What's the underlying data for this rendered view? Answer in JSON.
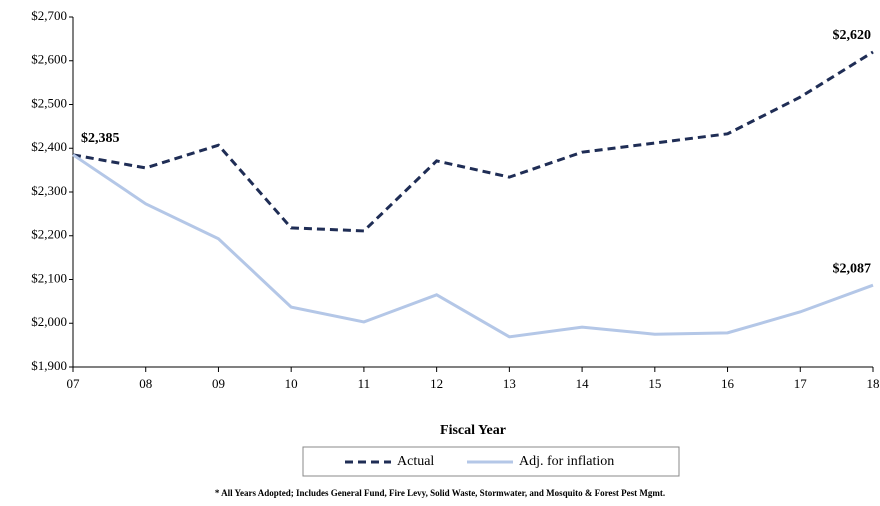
{
  "chart_data": {
    "type": "line",
    "x_label": "Fiscal Year",
    "footnote": "* All Years Adopted; Includes General Fund, Fire Levy, Solid Waste, Stormwater, and Mosquito & Forest Pest Mgmt.",
    "categories": [
      "07",
      "08",
      "09",
      "10",
      "11",
      "12",
      "13",
      "14",
      "15",
      "16",
      "17",
      "18"
    ],
    "series": [
      {
        "name": "Actual",
        "color": "#1f2d55",
        "dash": true,
        "values": [
          2385,
          2355,
          2407,
          2218,
          2211,
          2371,
          2334,
          2391,
          2412,
          2433,
          2517,
          2620
        ],
        "value_labels": [
          "$2,385",
          null,
          null,
          null,
          null,
          null,
          null,
          null,
          null,
          null,
          null,
          "$2,620"
        ]
      },
      {
        "name": "Adj. for inflation",
        "color": "#b4c7e7",
        "dash": false,
        "values": [
          2385,
          2273,
          2193,
          2037,
          2003,
          2065,
          1969,
          1991,
          1975,
          1978,
          2026,
          2087
        ],
        "value_labels": [
          null,
          null,
          null,
          null,
          null,
          null,
          null,
          null,
          null,
          null,
          null,
          "$2,087"
        ]
      }
    ],
    "ylim": [
      1900,
      2700
    ],
    "yticks": [
      {
        "value": 1900,
        "label": "$1,900"
      },
      {
        "value": 2000,
        "label": "$2,000"
      },
      {
        "value": 2100,
        "label": "$2,100"
      },
      {
        "value": 2200,
        "label": "$2,200"
      },
      {
        "value": 2300,
        "label": "$2,300"
      },
      {
        "value": 2400,
        "label": "$2,400"
      },
      {
        "value": 2500,
        "label": "$2,500"
      },
      {
        "value": 2600,
        "label": "$2,600"
      },
      {
        "value": 2700,
        "label": "$2,700"
      }
    ],
    "grid": false
  }
}
